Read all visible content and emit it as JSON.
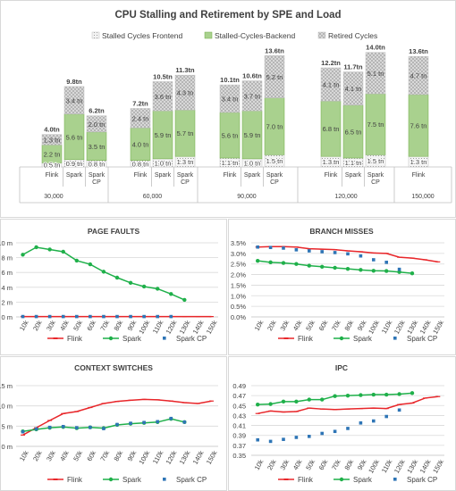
{
  "colors": {
    "frontend": "#e7e6e6",
    "backend": "#a9d18e",
    "backend_stroke": "#70ad47",
    "retired": "#d9d9d9",
    "flink": "#e8262a",
    "spark": "#1fb04a",
    "spark_cp": "#2e75b6",
    "text": "#404040",
    "grid": "#d9d9d9"
  },
  "chart_data": [
    {
      "type": "bar",
      "stacked": true,
      "title": "CPU Stalling and Retirement by SPE and Load",
      "series": [
        {
          "name": "Stalled Cycles Frontend",
          "pattern": "dots"
        },
        {
          "name": "Stalled-Cycles-Backend"
        },
        {
          "name": "Retired Cycles",
          "pattern": "crosshatch"
        }
      ],
      "groups": [
        {
          "label": "30,000",
          "bars": [
            {
              "label": "Flink",
              "frontend": 0.5,
              "backend": 2.2,
              "retired": 1.3,
              "total": "4.0tn",
              "labels": [
                "0.5 tn",
                "2.2 tn",
                "1.3 tn"
              ]
            },
            {
              "label": "Spark",
              "frontend": 0.9,
              "backend": 5.6,
              "retired": 3.4,
              "total": "9.8tn",
              "labels": [
                "0.9 tn",
                "5.6 tn",
                "3.4 tn"
              ]
            },
            {
              "label": "Spark CP",
              "frontend": 0.8,
              "backend": 3.5,
              "retired": 2.0,
              "total": "6.2tn",
              "labels": [
                "0.8 tn",
                "3.5 tn",
                "2.0 tn"
              ]
            }
          ]
        },
        {
          "label": "60,000",
          "bars": [
            {
              "label": "Flink",
              "frontend": 0.8,
              "backend": 4.0,
              "retired": 2.4,
              "total": "7.2tn",
              "labels": [
                "0.8 tn",
                "4.0 tn",
                "2.4 tn"
              ]
            },
            {
              "label": "Spark",
              "frontend": 1.0,
              "backend": 5.9,
              "retired": 3.6,
              "total": "10.5tn",
              "labels": [
                "1.0 tn",
                "5.9 tn",
                "3.6 tn"
              ]
            },
            {
              "label": "Spark CP",
              "frontend": 1.3,
              "backend": 5.7,
              "retired": 4.3,
              "total": "11.3tn",
              "labels": [
                "1.3 tn",
                "5.7 tn",
                "4.3 tn"
              ]
            }
          ]
        },
        {
          "label": "90,000",
          "bars": [
            {
              "label": "Flink",
              "frontend": 1.1,
              "backend": 5.6,
              "retired": 3.4,
              "total": "10.1tn",
              "labels": [
                "1.1 tn",
                "5.6 tn",
                "3.4 tn"
              ]
            },
            {
              "label": "Spark",
              "frontend": 1.0,
              "backend": 5.9,
              "retired": 3.7,
              "total": "10.6tn",
              "labels": [
                "1.0 tn",
                "5.9 tn",
                "3.7 tn"
              ]
            },
            {
              "label": "Spark CP",
              "frontend": 1.5,
              "backend": 7.0,
              "retired": 5.2,
              "total": "13.6tn",
              "labels": [
                "1.5 tn",
                "7.0 tn",
                "5.2 tn"
              ]
            }
          ]
        },
        {
          "label": "120,000",
          "bars": [
            {
              "label": "Flink",
              "frontend": 1.3,
              "backend": 6.8,
              "retired": 4.1,
              "total": "12.2tn",
              "labels": [
                "1.3 tn",
                "6.8 tn",
                "4.1 tn"
              ]
            },
            {
              "label": "Spark",
              "frontend": 1.1,
              "backend": 6.5,
              "retired": 4.1,
              "total": "11.7tn",
              "labels": [
                "1.1 tn",
                "6.5 tn",
                "4.1 tn"
              ]
            },
            {
              "label": "Spark CP",
              "frontend": 1.5,
              "backend": 7.5,
              "retired": 5.1,
              "total": "14.0tn",
              "labels": [
                "1.5 tn",
                "7.5 tn",
                "5.1 tn"
              ]
            }
          ]
        },
        {
          "label": "150,000",
          "bars": [
            {
              "label": "Flink",
              "frontend": 1.3,
              "backend": 7.6,
              "retired": 4.7,
              "total": "13.6tn",
              "labels": [
                "1.3 tn",
                "7.6 tn",
                "4.7 tn"
              ]
            }
          ]
        }
      ]
    },
    {
      "type": "line",
      "title": "PAGE FAULTS",
      "x": [
        "10k",
        "20k",
        "30k",
        "40k",
        "50k",
        "60k",
        "70k",
        "80k",
        "90k",
        "100k",
        "110k",
        "120k",
        "130k",
        "140k",
        "150k"
      ],
      "yticks": [
        "0 m",
        "2 m",
        "4 m",
        "6 m",
        "8 m",
        "10 m"
      ],
      "ylim": [
        0,
        10
      ],
      "series": [
        {
          "name": "Flink",
          "values": [
            0.05,
            0.05,
            0.05,
            0.05,
            0.05,
            0.05,
            0.05,
            0.05,
            0.05,
            0.05,
            0.05,
            0.05,
            0.05,
            0.05,
            0.05
          ]
        },
        {
          "name": "Spark",
          "values": [
            8.4,
            9.4,
            9.1,
            8.8,
            7.6,
            7.1,
            6.1,
            5.3,
            4.6,
            4.1,
            3.8,
            3.1,
            2.3,
            null,
            null
          ]
        },
        {
          "name": "Spark CP",
          "values": [
            0.05,
            0.05,
            0.05,
            0.05,
            0.05,
            0.05,
            0.05,
            0.05,
            0.05,
            0.05,
            0.05,
            0.05,
            null,
            null,
            null
          ]
        }
      ]
    },
    {
      "type": "line",
      "title": "BRANCH MISSES",
      "x": [
        "10k",
        "20k",
        "30k",
        "40k",
        "50k",
        "60k",
        "70k",
        "80k",
        "90k",
        "100k",
        "110k",
        "120k",
        "130k",
        "140k",
        "150k"
      ],
      "yticks": [
        "0.0%",
        "0.5%",
        "1.0%",
        "1.5%",
        "2.0%",
        "2.5%",
        "3.0%",
        "3.5%"
      ],
      "ylim": [
        0,
        3.5
      ],
      "series": [
        {
          "name": "Flink",
          "values": [
            3.3,
            3.32,
            3.32,
            3.3,
            3.22,
            3.2,
            3.18,
            3.12,
            3.08,
            3.02,
            3.0,
            2.82,
            2.78,
            2.7,
            2.6
          ]
        },
        {
          "name": "Spark",
          "values": [
            2.65,
            2.58,
            2.55,
            2.5,
            2.42,
            2.37,
            2.32,
            2.27,
            2.22,
            2.18,
            2.17,
            2.12,
            2.06,
            null,
            null
          ]
        },
        {
          "name": "Spark CP",
          "values": [
            3.3,
            3.28,
            3.25,
            3.17,
            3.12,
            3.08,
            3.04,
            2.98,
            2.88,
            2.7,
            2.58,
            2.25,
            null,
            null,
            null
          ]
        }
      ]
    },
    {
      "type": "line",
      "title": "CONTEXT SWITCHES",
      "x": [
        "10k",
        "20k",
        "30k",
        "40k",
        "50k",
        "60k",
        "70k",
        "80k",
        "90k",
        "100k",
        "110k",
        "120k",
        "130k",
        "140k",
        "150k"
      ],
      "yticks": [
        "0 m",
        "5 m",
        "10 m",
        "15 m"
      ],
      "ylim": [
        0,
        15
      ],
      "series": [
        {
          "name": "Flink",
          "values": [
            2.8,
            4.6,
            6.4,
            8.1,
            8.6,
            9.6,
            10.6,
            11.1,
            11.4,
            11.6,
            11.5,
            11.2,
            10.8,
            10.6,
            11.2
          ]
        },
        {
          "name": "Spark",
          "values": [
            3.7,
            4.2,
            4.6,
            4.8,
            4.5,
            4.7,
            4.5,
            5.3,
            5.6,
            5.8,
            6.0,
            6.8,
            6.0,
            null,
            null
          ]
        },
        {
          "name": "Spark CP",
          "values": [
            3.6,
            4.3,
            4.7,
            4.9,
            4.6,
            4.7,
            4.4,
            5.4,
            5.7,
            5.9,
            6.1,
            6.9,
            6.0,
            null,
            null
          ]
        }
      ]
    },
    {
      "type": "line",
      "title": "IPC",
      "x": [
        "10k",
        "20k",
        "30k",
        "40k",
        "50k",
        "60k",
        "70k",
        "80k",
        "90k",
        "100k",
        "110k",
        "120k",
        "130k",
        "140k",
        "150k"
      ],
      "yticks": [
        "0.35",
        "0.37",
        "0.39",
        "0.41",
        "0.43",
        "0.45",
        "0.47",
        "0.49"
      ],
      "ylim": [
        0.35,
        0.49
      ],
      "series": [
        {
          "name": "Flink",
          "values": [
            0.434,
            0.439,
            0.437,
            0.438,
            0.445,
            0.443,
            0.442,
            0.443,
            0.444,
            0.445,
            0.444,
            0.452,
            0.455,
            0.465,
            0.468
          ]
        },
        {
          "name": "Spark",
          "values": [
            0.452,
            0.453,
            0.458,
            0.458,
            0.462,
            0.462,
            0.469,
            0.47,
            0.471,
            0.472,
            0.472,
            0.473,
            0.475,
            null,
            null
          ]
        },
        {
          "name": "Spark CP",
          "values": [
            0.381,
            0.378,
            0.382,
            0.386,
            0.388,
            0.394,
            0.398,
            0.404,
            0.415,
            0.419,
            0.428,
            0.441,
            null,
            null,
            null
          ]
        }
      ]
    }
  ]
}
